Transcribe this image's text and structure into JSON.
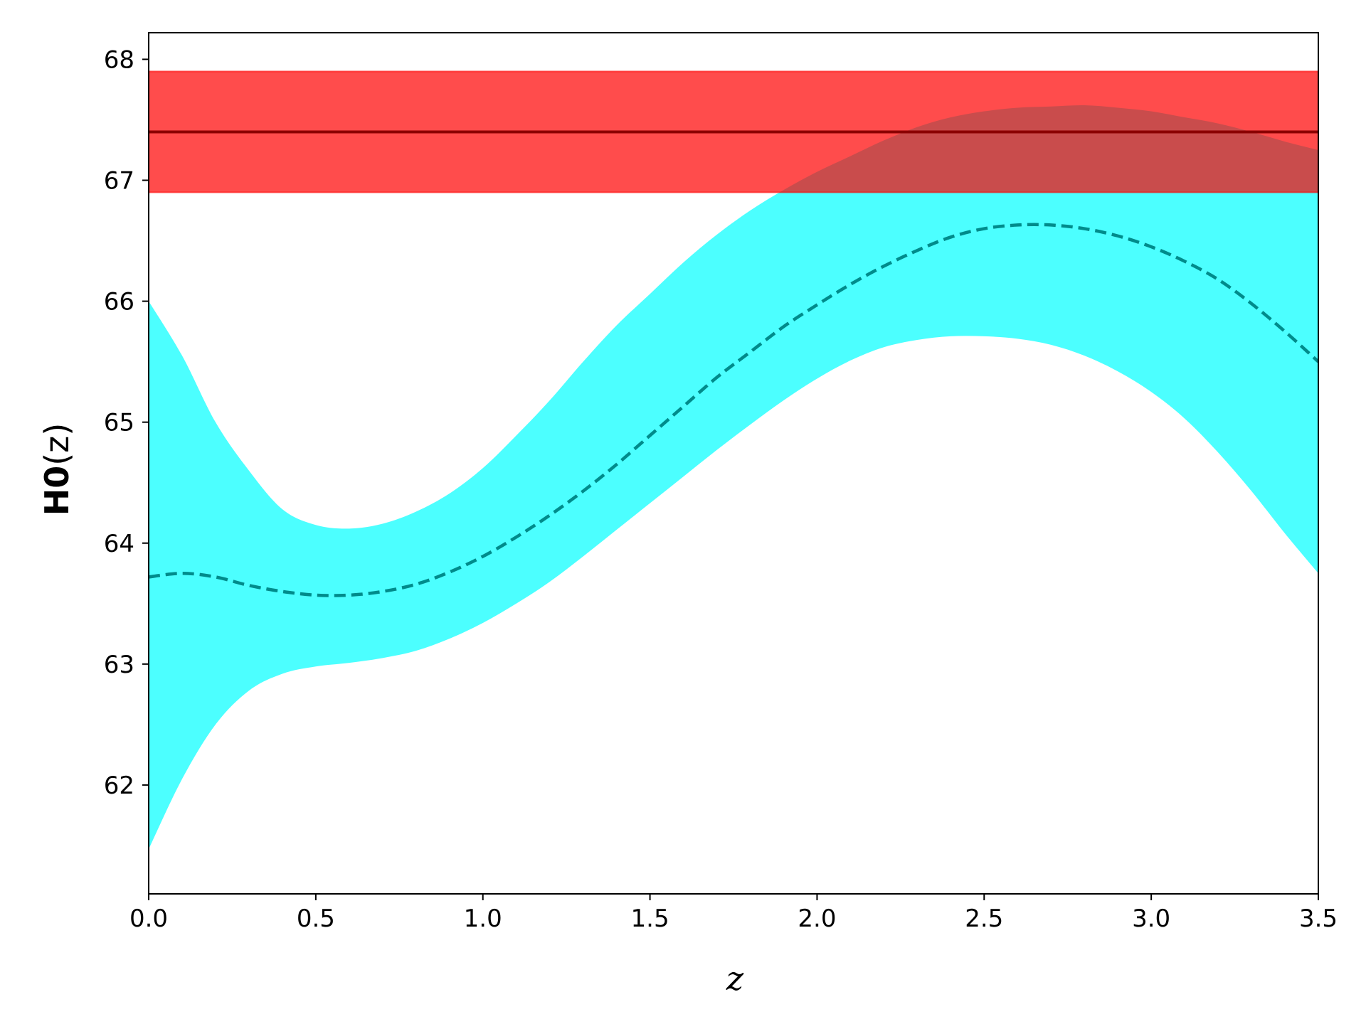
{
  "chart_data": {
    "type": "line",
    "xlabel": "z",
    "ylabel_bold": "H0",
    "ylabel_rest": "(z)",
    "xlim": [
      0.0,
      3.5
    ],
    "ylim": [
      61.1,
      68.22
    ],
    "xticks": [
      "0.0",
      "0.5",
      "1.0",
      "1.5",
      "2.0",
      "2.5",
      "3.0",
      "3.5"
    ],
    "yticks": [
      "62",
      "63",
      "64",
      "65",
      "66",
      "67",
      "68"
    ],
    "grid": false,
    "legend": "none",
    "reference": {
      "value": 67.4,
      "lower": 66.9,
      "upper": 67.9,
      "line_color": "#8b0000",
      "band_color": "#ff0000",
      "band_alpha": 0.7
    },
    "series": [
      {
        "style": "dashed",
        "color": "#008b8b",
        "band_color": "#00ffff",
        "band_alpha": 0.7,
        "x": [
          0.0,
          0.1,
          0.2,
          0.3,
          0.4,
          0.5,
          0.6,
          0.7,
          0.8,
          0.9,
          1.0,
          1.1,
          1.2,
          1.3,
          1.4,
          1.5,
          1.6,
          1.7,
          1.8,
          1.9,
          2.0,
          2.1,
          2.2,
          2.3,
          2.4,
          2.5,
          2.6,
          2.7,
          2.8,
          2.9,
          3.0,
          3.1,
          3.2,
          3.3,
          3.4,
          3.5
        ],
        "y": [
          63.72,
          63.75,
          63.72,
          63.65,
          63.6,
          63.57,
          63.57,
          63.6,
          63.66,
          63.76,
          63.89,
          64.05,
          64.23,
          64.43,
          64.65,
          64.89,
          65.13,
          65.37,
          65.58,
          65.79,
          65.97,
          66.14,
          66.29,
          66.42,
          66.53,
          66.6,
          66.63,
          66.63,
          66.6,
          66.54,
          66.45,
          66.33,
          66.18,
          65.98,
          65.75,
          65.5
        ],
        "lower": [
          61.47,
          62.05,
          62.5,
          62.78,
          62.92,
          62.98,
          63.01,
          63.05,
          63.11,
          63.21,
          63.34,
          63.5,
          63.68,
          63.89,
          64.11,
          64.33,
          64.55,
          64.77,
          64.98,
          65.18,
          65.36,
          65.51,
          65.62,
          65.68,
          65.71,
          65.71,
          65.69,
          65.64,
          65.55,
          65.42,
          65.25,
          65.03,
          64.75,
          64.43,
          64.08,
          63.75
        ],
        "upper": [
          66.0,
          65.55,
          65.0,
          64.6,
          64.28,
          64.15,
          64.12,
          64.16,
          64.26,
          64.41,
          64.62,
          64.89,
          65.18,
          65.5,
          65.8,
          66.06,
          66.32,
          66.55,
          66.75,
          66.92,
          67.07,
          67.2,
          67.33,
          67.44,
          67.52,
          67.57,
          67.6,
          67.61,
          67.62,
          67.6,
          67.57,
          67.52,
          67.47,
          67.4,
          67.32,
          67.25
        ]
      }
    ]
  }
}
